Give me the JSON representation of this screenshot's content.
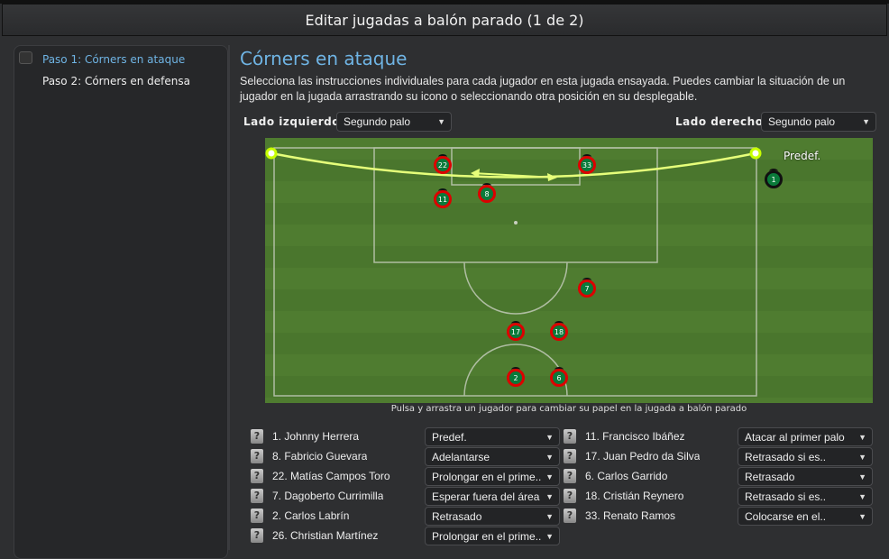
{
  "window": {
    "title": "Editar jugadas a balón parado (1 de 2)"
  },
  "sidebar": {
    "steps": [
      {
        "label": "Paso 1: Córners en ataque",
        "selected": true
      },
      {
        "label": "Paso 2: Córners en defensa",
        "selected": false
      }
    ]
  },
  "main": {
    "title": "Córners en ataque",
    "description": "Selecciona las instrucciones individuales para cada jugador en esta jugada ensayada. Puedes cambiar la situación de un jugador en la jugada arrastrando su icono o seleccionando otra posición en su desplegable.",
    "left_side": {
      "label": "Lado izquierdo",
      "value": "Segundo palo"
    },
    "right_side": {
      "label": "Lado derecho",
      "value": "Segundo palo"
    },
    "pitch": {
      "predef_label": "Predef.",
      "players": [
        "22",
        "33",
        "11",
        "8",
        "7",
        "17",
        "18",
        "2",
        "6",
        "1"
      ],
      "hint": "Pulsa y arrastra un jugador para cambiar su papel en la jugada a balón parado"
    },
    "help_icon": "?",
    "assignments": [
      {
        "player": "1. Johnny Herrera",
        "role": "Predef."
      },
      {
        "player": "11. Francisco Ibáñez",
        "role": "Atacar al primer palo"
      },
      {
        "player": "8. Fabricio Guevara",
        "role": "Adelantarse"
      },
      {
        "player": "17. Juan Pedro da Silva",
        "role": "Retrasado si es.."
      },
      {
        "player": "22. Matías Campos Toro",
        "role": "Prolongar en el prime.."
      },
      {
        "player": "6. Carlos Garrido",
        "role": "Retrasado"
      },
      {
        "player": "7. Dagoberto Currimilla",
        "role": "Esperar fuera del área"
      },
      {
        "player": "18. Cristián Reynero",
        "role": "Retrasado si es.."
      },
      {
        "player": "2. Carlos Labrín",
        "role": "Retrasado"
      },
      {
        "player": "33. Renato Ramos",
        "role": "Colocarse en el.."
      },
      {
        "player": "26. Christian Martínez",
        "role": "Prolongar en el prime.."
      }
    ]
  },
  "colors": {
    "accent": "#6fb4e4",
    "pitch": "#4f7c30",
    "player_fill": "#0a7a3a",
    "player_ring": "#dd0000",
    "trajectory": "#e6ff7a"
  }
}
